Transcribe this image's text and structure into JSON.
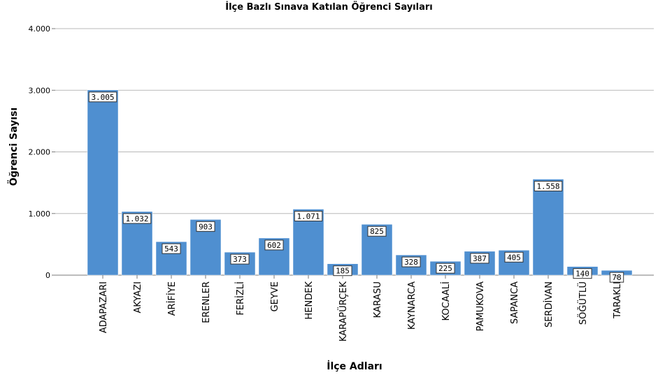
{
  "chart_data": {
    "type": "bar",
    "title": "İlçe Bazlı Sınava Katılan Öğrenci Sayıları",
    "xlabel": "İlçe Adları",
    "ylabel": "Öğrenci Sayısı",
    "ylim": [
      0,
      4000
    ],
    "yticks": [
      {
        "value": 0,
        "label": "0"
      },
      {
        "value": 1000,
        "label": "1.000"
      },
      {
        "value": 2000,
        "label": "2.000"
      },
      {
        "value": 3000,
        "label": "3.000"
      },
      {
        "value": 4000,
        "label": "4.000"
      }
    ],
    "grid": true,
    "bar_color": "#4f8fd0",
    "categories": [
      "ADAPAZARI",
      "AKYAZI",
      "ARİFİYE",
      "ERENLER",
      "FERİZLİ",
      "GEYVE",
      "HENDEK",
      "KARAPÜRÇEK",
      "KARASU",
      "KAYNARCA",
      "KOCAALİ",
      "PAMUKOVA",
      "SAPANCA",
      "SERDİVAN",
      "SÖĞÜTLÜ",
      "TARAKLI"
    ],
    "values": [
      3005,
      1032,
      543,
      903,
      373,
      602,
      1071,
      185,
      825,
      328,
      225,
      387,
      405,
      1558,
      140,
      78
    ],
    "value_labels": [
      "3.005",
      "1.032",
      "543",
      "903",
      "373",
      "602",
      "1.071",
      "185",
      "825",
      "328",
      "225",
      "387",
      "405",
      "1.558",
      "140",
      "78"
    ]
  }
}
